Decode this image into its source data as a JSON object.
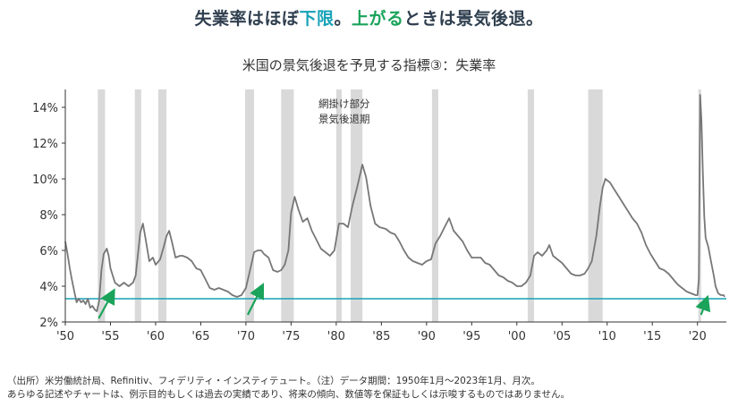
{
  "headline": {
    "part1": "失業率はほぼ",
    "part2": "下限",
    "part3": "。",
    "part4": "上がる",
    "part5": "ときは景気後退。",
    "color_teal": "#17a2b8",
    "color_green": "#1aa35a"
  },
  "chart_data": {
    "type": "line",
    "title": "米国の景気後退を予見する指標③：失業率",
    "xlabel": "",
    "ylabel": "",
    "xlim": [
      1950,
      2023.2
    ],
    "ylim": [
      2,
      15
    ],
    "y_ticks": [
      2,
      4,
      6,
      8,
      10,
      12,
      14
    ],
    "y_tick_labels": [
      "2%",
      "4%",
      "6%",
      "8%",
      "10%",
      "12%",
      "14%"
    ],
    "x_ticks": [
      1950,
      1955,
      1960,
      1965,
      1970,
      1975,
      1980,
      1985,
      1990,
      1995,
      2000,
      2005,
      2010,
      2015,
      2020
    ],
    "x_tick_labels": [
      "'50",
      "'55",
      "'60",
      "'65",
      "'70",
      "'75",
      "'80",
      "'85",
      "'90",
      "'95",
      "'00",
      "'05",
      "'10",
      "'15",
      "'20"
    ],
    "grid": false,
    "series": [
      {
        "values": [
          [
            1950.0,
            6.5
          ],
          [
            1950.25,
            5.8
          ],
          [
            1950.5,
            5.0
          ],
          [
            1950.75,
            4.3
          ],
          [
            1951.0,
            3.7
          ],
          [
            1951.25,
            3.1
          ],
          [
            1951.5,
            3.3
          ],
          [
            1951.75,
            3.1
          ],
          [
            1952.0,
            3.2
          ],
          [
            1952.25,
            3.0
          ],
          [
            1952.5,
            3.3
          ],
          [
            1952.75,
            2.8
          ],
          [
            1953.0,
            2.9
          ],
          [
            1953.25,
            2.7
          ],
          [
            1953.5,
            2.6
          ],
          [
            1953.75,
            3.2
          ],
          [
            1954.0,
            4.9
          ],
          [
            1954.25,
            5.8
          ],
          [
            1954.6,
            6.1
          ],
          [
            1954.8,
            5.7
          ],
          [
            1955.0,
            5.0
          ],
          [
            1955.5,
            4.2
          ],
          [
            1956.0,
            4.0
          ],
          [
            1956.5,
            4.2
          ],
          [
            1957.0,
            4.0
          ],
          [
            1957.5,
            4.2
          ],
          [
            1957.8,
            4.6
          ],
          [
            1958.0,
            5.6
          ],
          [
            1958.3,
            7.0
          ],
          [
            1958.6,
            7.5
          ],
          [
            1958.9,
            6.6
          ],
          [
            1959.3,
            5.4
          ],
          [
            1959.7,
            5.6
          ],
          [
            1960.0,
            5.2
          ],
          [
            1960.5,
            5.5
          ],
          [
            1960.9,
            6.2
          ],
          [
            1961.2,
            6.8
          ],
          [
            1961.5,
            7.1
          ],
          [
            1961.8,
            6.5
          ],
          [
            1962.2,
            5.6
          ],
          [
            1962.7,
            5.7
          ],
          [
            1963.0,
            5.7
          ],
          [
            1963.5,
            5.6
          ],
          [
            1964.0,
            5.4
          ],
          [
            1964.5,
            5.0
          ],
          [
            1965.0,
            4.9
          ],
          [
            1965.5,
            4.4
          ],
          [
            1966.0,
            3.9
          ],
          [
            1966.5,
            3.8
          ],
          [
            1967.0,
            3.9
          ],
          [
            1967.5,
            3.8
          ],
          [
            1968.0,
            3.7
          ],
          [
            1968.5,
            3.5
          ],
          [
            1969.0,
            3.4
          ],
          [
            1969.5,
            3.5
          ],
          [
            1970.0,
            3.9
          ],
          [
            1970.5,
            5.0
          ],
          [
            1970.9,
            5.9
          ],
          [
            1971.3,
            6.0
          ],
          [
            1971.7,
            6.0
          ],
          [
            1972.0,
            5.8
          ],
          [
            1972.5,
            5.6
          ],
          [
            1973.0,
            4.9
          ],
          [
            1973.5,
            4.8
          ],
          [
            1973.9,
            4.9
          ],
          [
            1974.3,
            5.2
          ],
          [
            1974.7,
            6.0
          ],
          [
            1975.0,
            8.1
          ],
          [
            1975.4,
            9.0
          ],
          [
            1975.8,
            8.3
          ],
          [
            1976.3,
            7.6
          ],
          [
            1976.8,
            7.8
          ],
          [
            1977.3,
            7.1
          ],
          [
            1977.8,
            6.6
          ],
          [
            1978.3,
            6.1
          ],
          [
            1978.8,
            5.9
          ],
          [
            1979.3,
            5.7
          ],
          [
            1979.8,
            6.0
          ],
          [
            1980.3,
            7.5
          ],
          [
            1980.8,
            7.5
          ],
          [
            1981.3,
            7.3
          ],
          [
            1981.8,
            8.5
          ],
          [
            1982.3,
            9.5
          ],
          [
            1982.9,
            10.8
          ],
          [
            1983.3,
            10.1
          ],
          [
            1983.8,
            8.5
          ],
          [
            1984.3,
            7.5
          ],
          [
            1984.8,
            7.3
          ],
          [
            1985.5,
            7.2
          ],
          [
            1986.0,
            7.0
          ],
          [
            1986.5,
            6.9
          ],
          [
            1987.0,
            6.5
          ],
          [
            1987.5,
            6.0
          ],
          [
            1988.0,
            5.6
          ],
          [
            1988.5,
            5.4
          ],
          [
            1989.0,
            5.3
          ],
          [
            1989.5,
            5.2
          ],
          [
            1990.0,
            5.4
          ],
          [
            1990.5,
            5.5
          ],
          [
            1991.0,
            6.4
          ],
          [
            1991.5,
            6.8
          ],
          [
            1992.0,
            7.3
          ],
          [
            1992.5,
            7.8
          ],
          [
            1993.0,
            7.1
          ],
          [
            1993.5,
            6.8
          ],
          [
            1994.0,
            6.5
          ],
          [
            1994.5,
            6.0
          ],
          [
            1995.0,
            5.6
          ],
          [
            1995.5,
            5.6
          ],
          [
            1996.0,
            5.6
          ],
          [
            1996.5,
            5.3
          ],
          [
            1997.0,
            5.2
          ],
          [
            1997.5,
            4.9
          ],
          [
            1998.0,
            4.6
          ],
          [
            1998.5,
            4.5
          ],
          [
            1999.0,
            4.3
          ],
          [
            1999.5,
            4.2
          ],
          [
            2000.0,
            4.0
          ],
          [
            2000.5,
            4.0
          ],
          [
            2001.0,
            4.2
          ],
          [
            2001.5,
            4.6
          ],
          [
            2001.9,
            5.7
          ],
          [
            2002.3,
            5.9
          ],
          [
            2002.8,
            5.7
          ],
          [
            2003.3,
            6.0
          ],
          [
            2003.6,
            6.3
          ],
          [
            2004.0,
            5.7
          ],
          [
            2004.5,
            5.5
          ],
          [
            2005.0,
            5.3
          ],
          [
            2005.5,
            5.0
          ],
          [
            2006.0,
            4.7
          ],
          [
            2006.5,
            4.6
          ],
          [
            2007.0,
            4.6
          ],
          [
            2007.5,
            4.7
          ],
          [
            2007.9,
            5.0
          ],
          [
            2008.3,
            5.4
          ],
          [
            2008.8,
            6.8
          ],
          [
            2009.2,
            8.5
          ],
          [
            2009.5,
            9.5
          ],
          [
            2009.8,
            10.0
          ],
          [
            2010.3,
            9.8
          ],
          [
            2010.8,
            9.4
          ],
          [
            2011.3,
            9.0
          ],
          [
            2011.8,
            8.6
          ],
          [
            2012.3,
            8.2
          ],
          [
            2012.8,
            7.8
          ],
          [
            2013.3,
            7.5
          ],
          [
            2013.8,
            7.0
          ],
          [
            2014.3,
            6.3
          ],
          [
            2014.8,
            5.8
          ],
          [
            2015.3,
            5.4
          ],
          [
            2015.8,
            5.0
          ],
          [
            2016.3,
            4.9
          ],
          [
            2016.8,
            4.7
          ],
          [
            2017.3,
            4.4
          ],
          [
            2017.8,
            4.1
          ],
          [
            2018.3,
            3.9
          ],
          [
            2018.8,
            3.7
          ],
          [
            2019.3,
            3.6
          ],
          [
            2019.8,
            3.5
          ],
          [
            2020.0,
            3.5
          ],
          [
            2020.15,
            4.4
          ],
          [
            2020.3,
            14.7
          ],
          [
            2020.45,
            13.2
          ],
          [
            2020.6,
            10.2
          ],
          [
            2020.75,
            7.9
          ],
          [
            2020.9,
            6.7
          ],
          [
            2021.2,
            6.2
          ],
          [
            2021.5,
            5.4
          ],
          [
            2021.8,
            4.6
          ],
          [
            2022.0,
            4.0
          ],
          [
            2022.3,
            3.6
          ],
          [
            2022.6,
            3.5
          ],
          [
            2022.9,
            3.5
          ],
          [
            2023.0,
            3.4
          ]
        ]
      }
    ],
    "recession_label_line1": "網掛け部分",
    "recession_label_line2": "景気後退期",
    "recessions": [
      [
        1953.6,
        1954.4
      ],
      [
        1957.7,
        1958.4
      ],
      [
        1960.3,
        1961.2
      ],
      [
        1969.9,
        1970.9
      ],
      [
        1973.9,
        1975.3
      ],
      [
        1980.0,
        1980.6
      ],
      [
        1981.6,
        1982.9
      ],
      [
        1990.6,
        1991.3
      ],
      [
        2001.2,
        2001.9
      ],
      [
        2007.9,
        2009.5
      ],
      [
        2020.1,
        2020.4
      ]
    ],
    "reference_line_value": 3.3,
    "annotation_arrows": [
      {
        "from": [
          1953.7,
          2.2
        ],
        "to": [
          1955.1,
          3.5
        ]
      },
      {
        "from": [
          1970.2,
          2.4
        ],
        "to": [
          1971.6,
          3.8
        ]
      },
      {
        "from": [
          2020.4,
          2.4
        ],
        "to": [
          2020.9,
          3.1
        ]
      }
    ],
    "colors": {
      "line": "#777777",
      "recession": "#d9d9d9",
      "reference_line": "#17a2b8",
      "arrow": "#1aa35a",
      "axis": "#333333"
    }
  },
  "footnote": {
    "line1": "（出所）米労働統計局、Refinitiv、フィデリティ・インスティテュート。（注）データ期間：1950年1月〜2023年1月、月次。",
    "line2": "あらゆる記述やチャートは、例示目的もしくは過去の実績であり、将来の傾向、数値等を保証もしくは示唆するものではありません。"
  }
}
